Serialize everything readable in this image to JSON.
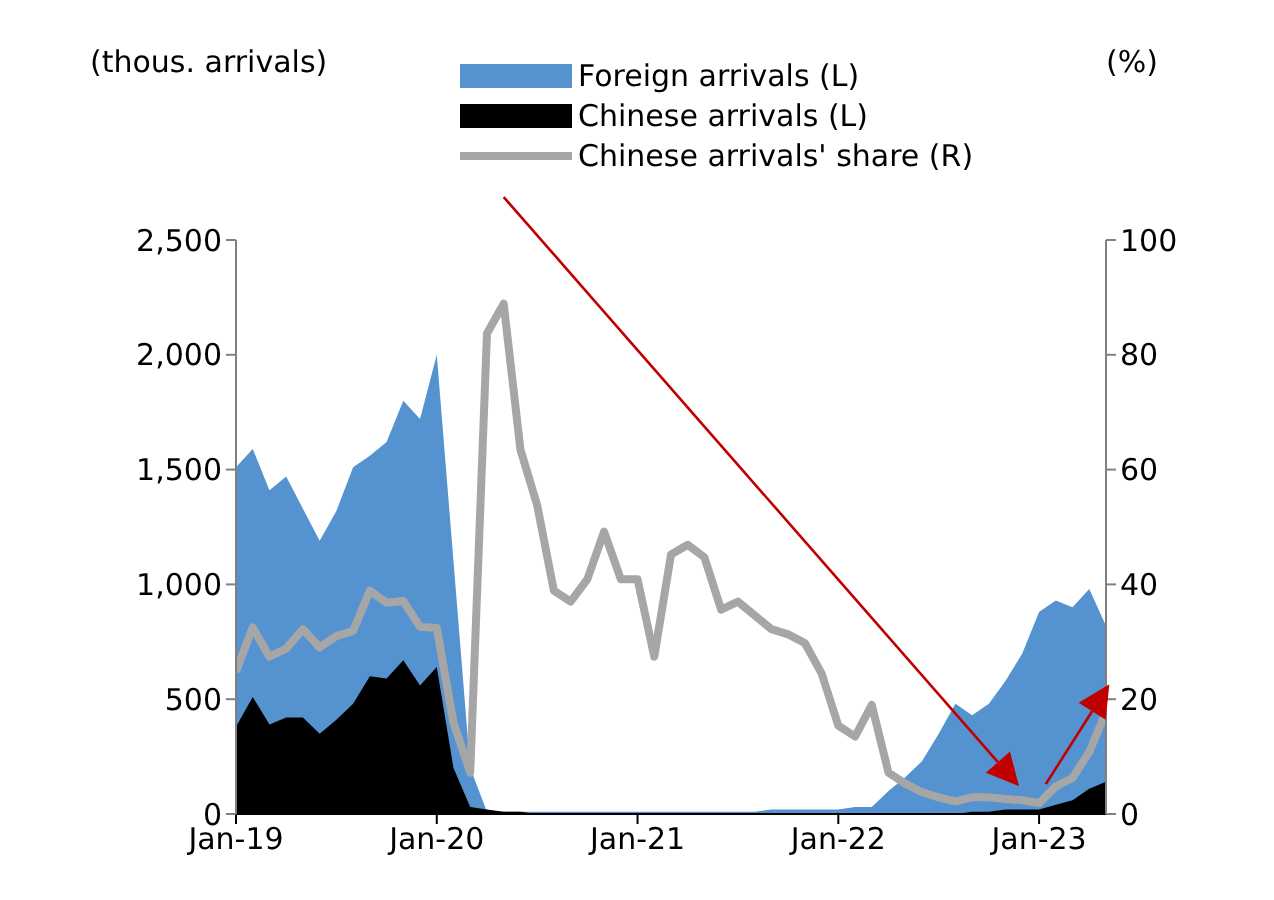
{
  "chart_data": {
    "type": "area",
    "categories": [
      "Jan-19",
      null,
      null,
      null,
      null,
      null,
      null,
      null,
      null,
      null,
      null,
      null,
      "Jan-20",
      null,
      null,
      null,
      null,
      null,
      null,
      null,
      null,
      null,
      null,
      null,
      "Jan-21",
      null,
      null,
      null,
      null,
      null,
      null,
      null,
      null,
      null,
      null,
      null,
      "Jan-22",
      null,
      null,
      null,
      null,
      null,
      null,
      null,
      null,
      null,
      null,
      null,
      "Jan-23",
      null,
      null,
      null,
      null
    ],
    "ylabel": "(thous. arrivals)",
    "y2label": "(%)",
    "ylim": [
      0,
      2500
    ],
    "yticks": [
      0,
      500,
      {
        "value": 1000,
        "label": "1,000"
      },
      {
        "value": 1500,
        "label": "1,500"
      },
      {
        "value": 2000,
        "label": "2,000"
      },
      {
        "value": 2500,
        "label": "2,500"
      }
    ],
    "y2lim": [
      0,
      100
    ],
    "y2ticks": [
      0,
      20,
      40,
      60,
      80,
      100
    ],
    "legend": "top",
    "marker": "none",
    "series": [
      {
        "name": "Foreign arrivals (L)",
        "color": "#5593d0",
        "values": [
          1510,
          1590,
          1410,
          1470,
          1330,
          1190,
          1320,
          1510,
          1560,
          1620,
          1800,
          1720,
          2000,
          1100,
          200,
          10,
          10,
          10,
          10,
          10,
          10,
          10,
          10,
          10,
          10,
          10,
          10,
          10,
          10,
          10,
          10,
          10,
          20,
          20,
          20,
          20,
          20,
          30,
          30,
          100,
          160,
          230,
          350,
          480,
          430,
          480,
          580,
          700,
          880,
          930,
          900,
          980,
          820
        ]
      },
      {
        "name": "Chinese arrivals (L)",
        "color": "#000000",
        "values": [
          380,
          510,
          390,
          420,
          420,
          350,
          410,
          480,
          600,
          590,
          670,
          560,
          640,
          200,
          30,
          20,
          10,
          10,
          0,
          0,
          0,
          0,
          0,
          0,
          0,
          0,
          0,
          0,
          0,
          0,
          0,
          0,
          0,
          0,
          0,
          0,
          0,
          0,
          0,
          0,
          0,
          0,
          0,
          0,
          10,
          10,
          20,
          20,
          20,
          40,
          60,
          110,
          140
        ]
      },
      {
        "name": "Chinese arrivals' share (R)",
        "type": "line",
        "axis": "y2",
        "color": "#a6a6a6",
        "values": [
          24.8,
          32.5,
          27.4,
          28.8,
          32.2,
          29,
          31,
          31.9,
          38.9,
          36.8,
          37.1,
          32.6,
          32.4,
          15.9,
          7.2,
          83.7,
          88.9,
          63.5,
          53.8,
          38.9,
          37,
          40.9,
          49.2,
          40.9,
          40.9,
          27.4,
          45.2,
          46.9,
          44.7,
          35.6,
          37,
          34.6,
          32.2,
          31.3,
          29.8,
          24.5,
          15.4,
          13.5,
          19,
          7.2,
          5.3,
          3.8,
          2.9,
          2.2,
          2.9,
          2.9,
          2.6,
          2.4,
          1.9,
          4.8,
          6.3,
          10.8,
          17.8
        ]
      }
    ]
  }
}
